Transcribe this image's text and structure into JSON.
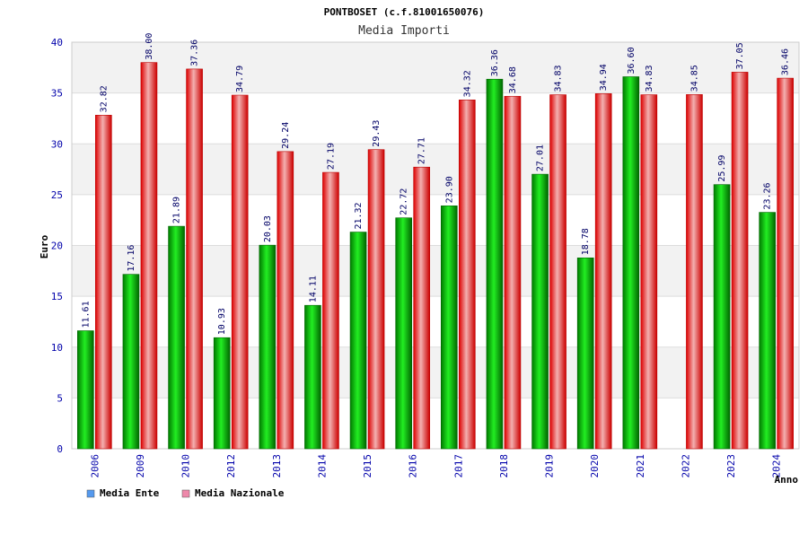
{
  "chart_data": {
    "type": "bar",
    "title": "PONTBOSET (c.f.81001650076)",
    "subtitle": "Media Importi",
    "xlabel": "Anno",
    "ylabel": "Euro",
    "ylim": [
      0,
      40
    ],
    "yticks": [
      "0",
      "5",
      "10",
      "15",
      "20",
      "25",
      "30",
      "35",
      "40"
    ],
    "categories": [
      "2006",
      "2009",
      "2010",
      "2012",
      "2013",
      "2014",
      "2015",
      "2016",
      "2017",
      "2018",
      "2019",
      "2020",
      "2021",
      "2022",
      "2023",
      "2024"
    ],
    "series": [
      {
        "name": "Media Ente",
        "color": "#00cc00",
        "values": [
          11.61,
          17.16,
          21.89,
          10.93,
          20.03,
          14.11,
          21.32,
          22.72,
          23.9,
          36.36,
          27.01,
          18.78,
          36.6,
          null,
          25.99,
          23.26
        ],
        "labels": [
          "11.61",
          "17.16",
          "21.89",
          "10.93",
          "20.03",
          "14.11",
          "21.32",
          "22.72",
          "23.90",
          "36.36",
          "27.01",
          "18.78",
          "36.60",
          "",
          "25.99",
          "23.26"
        ]
      },
      {
        "name": "Media Nazionale",
        "color": "#ff0000",
        "values": [
          32.82,
          38.0,
          37.36,
          34.79,
          29.24,
          27.19,
          29.43,
          27.71,
          34.32,
          34.68,
          34.83,
          34.94,
          34.83,
          34.85,
          37.05,
          36.46
        ],
        "labels": [
          "32.82",
          "38.00",
          "37.36",
          "34.79",
          "29.24",
          "27.19",
          "29.43",
          "27.71",
          "34.32",
          "34.68",
          "34.83",
          "34.94",
          "34.83",
          "34.85",
          "37.05",
          "36.46"
        ]
      }
    ],
    "legend": [
      {
        "label": "Media Ente",
        "color": "#5599ee"
      },
      {
        "label": "Media Nazionale",
        "color": "#ee88aa"
      }
    ],
    "grid": true,
    "legend_position": "bottom-left"
  }
}
